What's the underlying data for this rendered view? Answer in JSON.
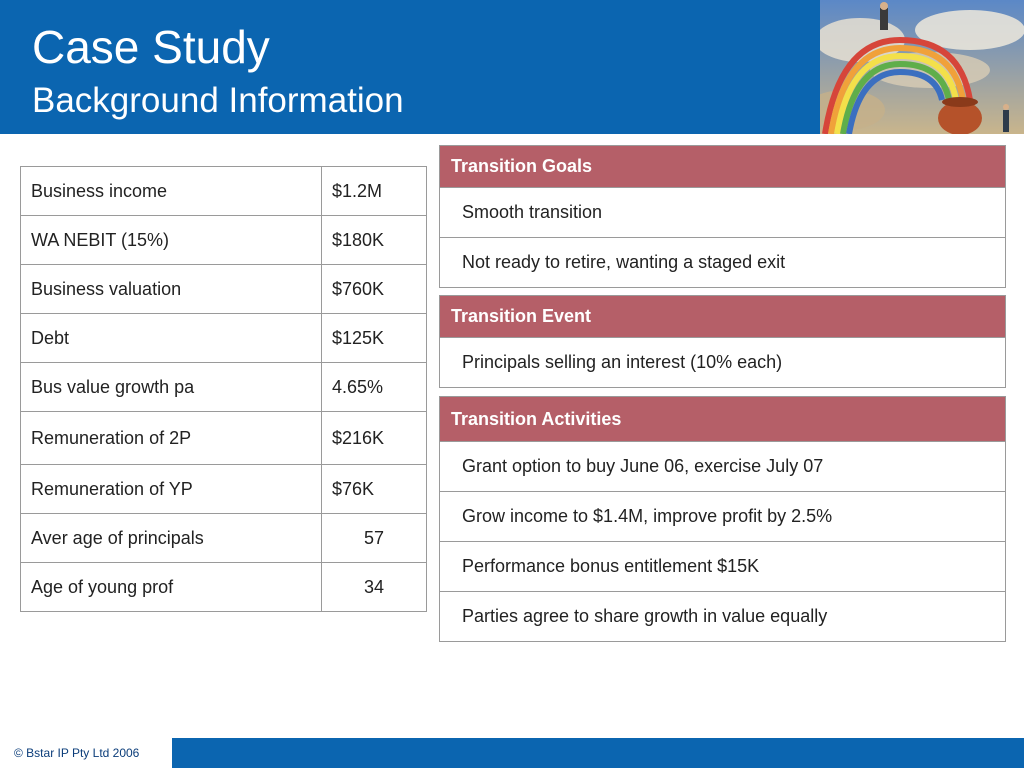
{
  "header": {
    "title": "Case Study",
    "subtitle": "Background Information"
  },
  "left_table": [
    {
      "label": "Business income",
      "value": "$1.2M"
    },
    {
      "label": "WA NEBIT (15%)",
      "value": "$180K"
    },
    {
      "label": "Business valuation",
      "value": "$760K"
    },
    {
      "label": "Debt",
      "value": "$125K"
    },
    {
      "label": "Bus value growth pa",
      "value": "4.65%"
    },
    {
      "label": "Remuneration of 2P",
      "value": "$216K"
    },
    {
      "label": "Remuneration of YP",
      "value": "$76K"
    },
    {
      "label": "Aver age of principals",
      "value": "57"
    },
    {
      "label": "Age of young prof",
      "value": "34"
    }
  ],
  "transition_goals": {
    "heading": "Transition Goals",
    "items": [
      "Smooth transition",
      "Not ready to retire, wanting a staged exit"
    ]
  },
  "transition_event": {
    "heading": "Transition Event",
    "items": [
      "Principals selling an interest (10% each)"
    ]
  },
  "transition_activities": {
    "heading": "Transition Activities",
    "items": [
      "Grant option to buy June 06, exercise July 07",
      "Grow income to $1.4M, improve profit by 2.5%",
      "Performance bonus entitlement $15K",
      "Parties agree to share growth in value equally"
    ]
  },
  "footer": {
    "copyright": "© Bstar IP Pty Ltd 2006"
  },
  "colors": {
    "header_blue": "#0b65b0",
    "panel_header": "#b55f68"
  },
  "icons": [
    "rainbow-pot-of-gold-illustration"
  ]
}
